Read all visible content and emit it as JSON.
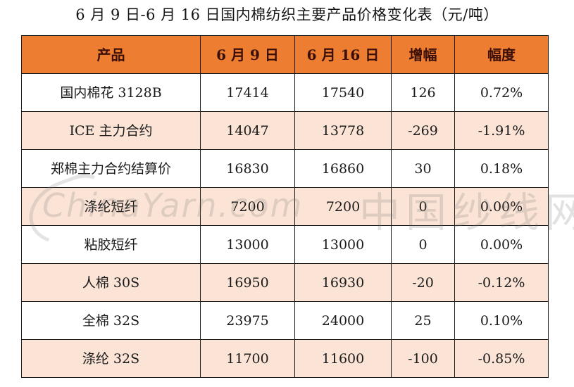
{
  "title": "6 月 9 日-6 月 16 日国内棉纺织主要产品价格变化表（元/吨）",
  "table": {
    "headers": [
      "产品",
      "6 月 9 日",
      "6 月 16 日",
      "增幅",
      "幅度"
    ],
    "rows": [
      [
        "国内棉花 3128B",
        "17414",
        "17540",
        "126",
        "0.72%"
      ],
      [
        "ICE 主力合约",
        "14047",
        "13778",
        "-269",
        "-1.91%"
      ],
      [
        "郑棉主力合约结算价",
        "16830",
        "16860",
        "30",
        "0.18%"
      ],
      [
        "涤纶短纤",
        "7200",
        "7200",
        "0",
        "0.00%"
      ],
      [
        "粘胶短纤",
        "13000",
        "13000",
        "0",
        "0.00%"
      ],
      [
        "人棉 30S",
        "16950",
        "16930",
        "-20",
        "-0.12%"
      ],
      [
        "全棉 32S",
        "23975",
        "24000",
        "25",
        "0.10%"
      ],
      [
        "涤纶 32S",
        "11700",
        "11600",
        "-100",
        "-0.85%"
      ]
    ]
  },
  "watermark": {
    "text": "ChinaYarn.com",
    "cn_text": "中国纱线网"
  },
  "colors": {
    "header_bg": "#ed7d31",
    "header_text": "#3a0f08",
    "row_alt_bg": "#fbe4d6",
    "row_bg": "#ffffff",
    "border": "#1c1c1c"
  }
}
